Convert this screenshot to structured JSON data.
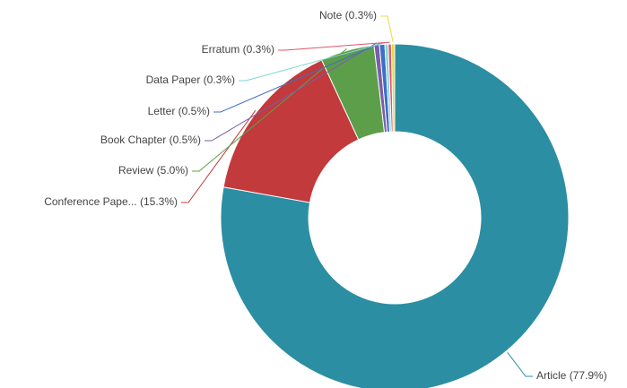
{
  "chart_data": {
    "type": "donut",
    "categories": [
      "Article",
      "Conference Pape...",
      "Review",
      "Book Chapter",
      "Letter",
      "Data Paper",
      "Erratum",
      "Note"
    ],
    "values": [
      77.9,
      15.3,
      5.0,
      0.5,
      0.5,
      0.3,
      0.3,
      0.3
    ],
    "value_labels": [
      "(77.9%)",
      "(15.3%)",
      "(5.0%)",
      "(0.5%)",
      "(0.5%)",
      "(0.3%)",
      "(0.3%)",
      "(0.3%)"
    ],
    "colors": [
      "#2b8ea3",
      "#c23a3c",
      "#5d9e4a",
      "#7b5ea7",
      "#3d6fc4",
      "#7fd3d8",
      "#e0556a",
      "#e8d84a"
    ]
  }
}
